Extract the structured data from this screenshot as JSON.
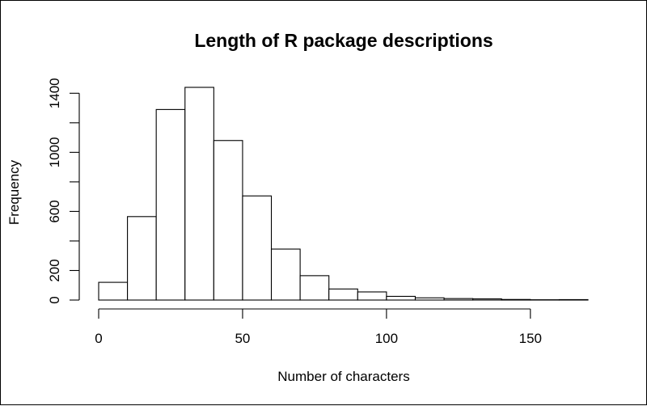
{
  "chart_data": {
    "type": "bar",
    "title": "Length of R package descriptions",
    "xlabel": "Number of characters",
    "ylabel": "Frequency",
    "bin_width": 10,
    "bins": [
      {
        "start": 0,
        "end": 10,
        "count": 120
      },
      {
        "start": 10,
        "end": 20,
        "count": 565
      },
      {
        "start": 20,
        "end": 30,
        "count": 1290
      },
      {
        "start": 30,
        "end": 40,
        "count": 1440
      },
      {
        "start": 40,
        "end": 50,
        "count": 1080
      },
      {
        "start": 50,
        "end": 60,
        "count": 705
      },
      {
        "start": 60,
        "end": 70,
        "count": 345
      },
      {
        "start": 70,
        "end": 80,
        "count": 165
      },
      {
        "start": 80,
        "end": 90,
        "count": 75
      },
      {
        "start": 90,
        "end": 100,
        "count": 55
      },
      {
        "start": 100,
        "end": 110,
        "count": 25
      },
      {
        "start": 110,
        "end": 120,
        "count": 15
      },
      {
        "start": 120,
        "end": 130,
        "count": 10
      },
      {
        "start": 130,
        "end": 140,
        "count": 8
      },
      {
        "start": 140,
        "end": 150,
        "count": 4
      },
      {
        "start": 150,
        "end": 160,
        "count": 2
      },
      {
        "start": 160,
        "end": 170,
        "count": 3
      }
    ],
    "xlim": [
      0,
      170
    ],
    "ylim": [
      0,
      1440
    ],
    "x_ticks": [
      {
        "value": 0,
        "label": "0"
      },
      {
        "value": 50,
        "label": "50"
      },
      {
        "value": 100,
        "label": "100"
      },
      {
        "value": 150,
        "label": "150"
      }
    ],
    "y_ticks": [
      {
        "value": 0,
        "label": "0"
      },
      {
        "value": 200,
        "label": "200"
      },
      {
        "value": 600,
        "label": "600"
      },
      {
        "value": 1000,
        "label": "1000"
      },
      {
        "value": 1400,
        "label": "1400"
      }
    ],
    "y_minor_ticks": [
      400,
      800,
      1200
    ],
    "grid": false,
    "bar_fill": "#ffffff",
    "bar_stroke": "#000000"
  }
}
